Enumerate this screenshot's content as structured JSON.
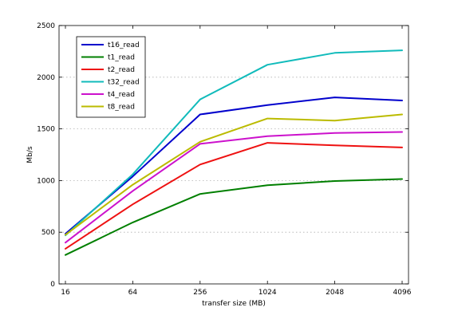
{
  "chart_data": {
    "type": "line",
    "title": "",
    "xlabel": "transfer size (MB)",
    "ylabel": "Mb/s",
    "x_scale": "categorical",
    "categories": [
      "16",
      "64",
      "256",
      "1024",
      "2048",
      "4096"
    ],
    "ylim": [
      0,
      2500
    ],
    "yticks": [
      0,
      500,
      1000,
      1500,
      2000,
      2500
    ],
    "grid": "horizontal dotted",
    "legend_position": "top-left",
    "series": [
      {
        "name": "t16_read",
        "color": "#0000cc",
        "values": [
          485,
          1040,
          1640,
          1730,
          1805,
          1775
        ]
      },
      {
        "name": "t1_read",
        "color": "#007f00",
        "values": [
          280,
          595,
          870,
          955,
          995,
          1015
        ]
      },
      {
        "name": "t2_read",
        "color": "#ee1111",
        "values": [
          340,
          770,
          1155,
          1365,
          1340,
          1320
        ]
      },
      {
        "name": "t32_read",
        "color": "#11bbbb",
        "values": [
          470,
          1060,
          1785,
          2120,
          2235,
          2260
        ]
      },
      {
        "name": "t4_read",
        "color": "#cc11cc",
        "values": [
          400,
          900,
          1355,
          1430,
          1460,
          1470
        ]
      },
      {
        "name": "t8_read",
        "color": "#bbbb00",
        "values": [
          475,
          960,
          1375,
          1600,
          1580,
          1640
        ]
      }
    ]
  }
}
